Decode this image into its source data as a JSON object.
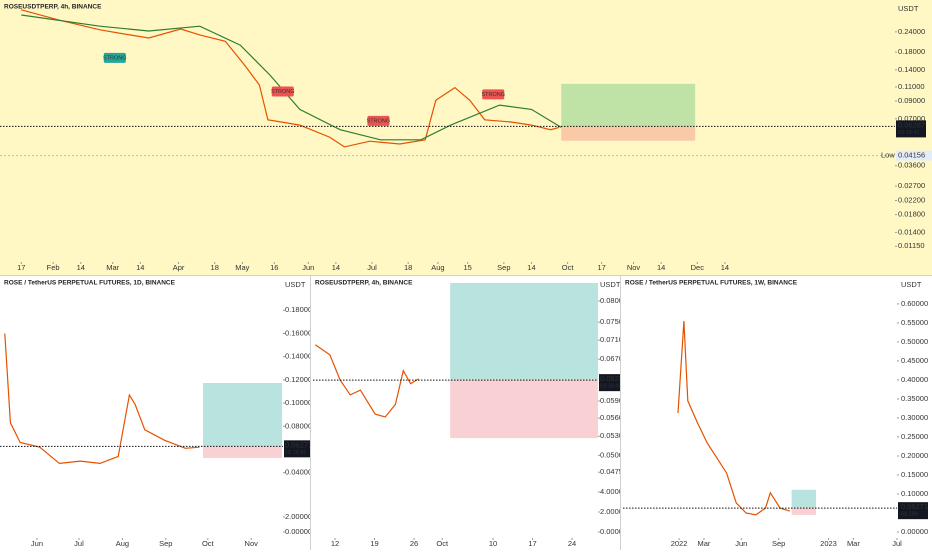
{
  "chart_data": [
    {
      "type": "line",
      "title": "ROSEUSDTPERP, 4h, BINANCE",
      "y_unit": "USDT",
      "log": true,
      "xlim": [
        6,
        427
      ],
      "ylim": [
        0.0092,
        0.377
      ],
      "xticks": [
        {
          "value": 16,
          "label": "17"
        },
        {
          "value": 31,
          "label": "Feb"
        },
        {
          "value": 44,
          "label": "14"
        },
        {
          "value": 59,
          "label": "Mar"
        },
        {
          "value": 72,
          "label": "14"
        },
        {
          "value": 90,
          "label": "Apr"
        },
        {
          "value": 107,
          "label": "18"
        },
        {
          "value": 120,
          "label": "May"
        },
        {
          "value": 135,
          "label": "16"
        },
        {
          "value": 151,
          "label": "Jun"
        },
        {
          "value": 164,
          "label": "14"
        },
        {
          "value": 181,
          "label": "Jul"
        },
        {
          "value": 198,
          "label": "18"
        },
        {
          "value": 212,
          "label": "Aug"
        },
        {
          "value": 226,
          "label": "15"
        },
        {
          "value": 243,
          "label": "Sep"
        },
        {
          "value": 256,
          "label": "14"
        },
        {
          "value": 273,
          "label": "Oct"
        },
        {
          "value": 289,
          "label": "17"
        },
        {
          "value": 304,
          "label": "Nov"
        },
        {
          "value": 317,
          "label": "14"
        },
        {
          "value": 334,
          "label": "Dec"
        },
        {
          "value": 347,
          "label": "14"
        }
      ],
      "yticks": [
        {
          "value": 0.24,
          "label": "0.24000"
        },
        {
          "value": 0.18,
          "label": "0.18000"
        },
        {
          "value": 0.14,
          "label": "0.14000"
        },
        {
          "value": 0.11,
          "label": "0.11000"
        },
        {
          "value": 0.09,
          "label": "0.09000"
        },
        {
          "value": 0.07,
          "label": "0.07000"
        },
        {
          "value": 0.036,
          "label": "0.03600"
        },
        {
          "value": 0.027,
          "label": "0.02700"
        },
        {
          "value": 0.022,
          "label": "0.02200"
        },
        {
          "value": 0.018,
          "label": "0.01800"
        },
        {
          "value": 0.014,
          "label": "0.01400"
        },
        {
          "value": 0.0115,
          "label": "0.01150"
        }
      ],
      "series": [
        {
          "color": "#e65100",
          "x": [
            16,
            34,
            53,
            67,
            76,
            91,
            100,
            112,
            121,
            128,
            132,
            138,
            147,
            161,
            168,
            180,
            194,
            206,
            211,
            220,
            227,
            234,
            246,
            256,
            265,
            269
          ],
          "values": [
            0.328,
            0.283,
            0.247,
            0.23,
            0.22,
            0.25,
            0.23,
            0.21,
            0.15,
            0.113,
            0.069,
            0.067,
            0.064,
            0.054,
            0.047,
            0.051,
            0.049,
            0.052,
            0.091,
            0.109,
            0.091,
            0.069,
            0.067,
            0.064,
            0.06,
            0.062
          ]
        },
        {
          "color": "#2e7d32",
          "x": [
            16,
            53,
            76,
            100,
            119,
            133,
            147,
            166,
            185,
            204,
            218,
            241,
            256,
            270
          ],
          "values": [
            0.305,
            0.26,
            0.243,
            0.26,
            0.199,
            0.13,
            0.08,
            0.06,
            0.052,
            0.052,
            0.064,
            0.085,
            0.08,
            0.062
          ]
        }
      ],
      "price": {
        "value": 0.06287,
        "countdown": "03:18:41"
      },
      "low": {
        "label": "Low",
        "value": 0.04156
      },
      "signals": [
        {
          "text": "STRONG",
          "x": 60,
          "value": 0.166,
          "color": "#26a69a"
        },
        {
          "text": "STRONG",
          "x": 139,
          "value": 0.103,
          "color": "#ef5350"
        },
        {
          "text": "STRONG",
          "x": 184,
          "value": 0.068,
          "color": "#ef5350"
        },
        {
          "text": "STRONG",
          "x": 238,
          "value": 0.099,
          "color": "#ef5350"
        }
      ],
      "position": {
        "x0": 270,
        "x1": 333,
        "target": 0.115,
        "entry": 0.0629,
        "stop": 0.0513,
        "target_color": "#bfe3a6",
        "stop_color": "#f9c9a8"
      },
      "background": "#fff8c5"
    },
    {
      "type": "line",
      "title": "ROSE / TetherUS PERPETUAL FUTURES, 1D, BINANCE",
      "y_unit": "USDT",
      "log": false,
      "xlim": [
        124.6,
        326.7
      ],
      "ylim": [
        0.038,
        0.2035
      ],
      "xticks": [
        {
          "value": 151,
          "label": "Jun"
        },
        {
          "value": 181,
          "label": "Jul"
        },
        {
          "value": 212,
          "label": "Aug"
        },
        {
          "value": 243,
          "label": "Sep"
        },
        {
          "value": 273,
          "label": "Oct"
        },
        {
          "value": 304,
          "label": "Nov"
        }
      ],
      "yticks": [
        {
          "value": 0.18,
          "label": "0.18000"
        },
        {
          "value": 0.16,
          "label": "0.16000"
        },
        {
          "value": 0.14,
          "label": "0.14000"
        },
        {
          "value": 0.12,
          "label": "0.12000"
        },
        {
          "value": 0.1,
          "label": "0.10000"
        },
        {
          "value": 0.08,
          "label": "0.08000"
        },
        {
          "value": 0.04,
          "label": "0.04000"
        }
      ],
      "volume_ylim": [
        0,
        4.9
      ],
      "volume_ticks": [
        {
          "value": 2,
          "label": "2.00000"
        },
        {
          "value": 0,
          "label": "0.00000"
        }
      ],
      "series": [
        {
          "color": "#e65100",
          "x": [
            128,
            132,
            139,
            153,
            167,
            182,
            196,
            209,
            217,
            221,
            228,
            242,
            257,
            267
          ],
          "values": [
            0.16,
            0.083,
            0.066,
            0.062,
            0.048,
            0.05,
            0.048,
            0.054,
            0.107,
            0.099,
            0.077,
            0.068,
            0.061,
            0.062
          ]
        }
      ],
      "price": {
        "value": 0.06271,
        "countdown": "15:18:41"
      },
      "position": {
        "x0": 269.6,
        "x1": 326,
        "target": 0.1173,
        "entry": 0.06271,
        "stop": 0.0527,
        "target_color": "#b9e3df",
        "stop_color": "#f9d0d3"
      },
      "background": "#ffffff"
    },
    {
      "type": "line",
      "title": "ROSEUSDTPERP, 4h, BINANCE",
      "y_unit": "USDT",
      "log": true,
      "xlim": [
        251.1,
        301.6
      ],
      "ylim": [
        0.045,
        0.0845
      ],
      "xticks": [
        {
          "value": 255,
          "label": "12"
        },
        {
          "value": 262,
          "label": "19"
        },
        {
          "value": 269,
          "label": "26"
        },
        {
          "value": 274,
          "label": "Oct"
        },
        {
          "value": 283,
          "label": "10"
        },
        {
          "value": 290,
          "label": "17"
        },
        {
          "value": 297,
          "label": "24"
        }
      ],
      "yticks": [
        {
          "value": 0.08,
          "label": "0.08000"
        },
        {
          "value": 0.075,
          "label": "0.07500"
        },
        {
          "value": 0.071,
          "label": "0.07100"
        },
        {
          "value": 0.067,
          "label": "0.06700"
        },
        {
          "value": 0.059,
          "label": "0.05900"
        },
        {
          "value": 0.056,
          "label": "0.05600"
        },
        {
          "value": 0.053,
          "label": "0.05300"
        },
        {
          "value": 0.05,
          "label": "0.05000"
        },
        {
          "value": 0.0475,
          "label": "0.04750"
        }
      ],
      "volume_ylim": [
        0,
        4.2
      ],
      "volume_ticks": [
        {
          "value": 4,
          "label": "4.00000"
        },
        {
          "value": 2,
          "label": "2.00000"
        },
        {
          "value": 0,
          "label": "0.00000"
        }
      ],
      "series": [
        {
          "color": "#e65100",
          "x": [
            251.5,
            254.1,
            255.9,
            257.7,
            259.5,
            262.1,
            263.9,
            265.7,
            267.1,
            268.4,
            269.8
          ],
          "values": [
            0.07,
            0.0679,
            0.0629,
            0.0601,
            0.061,
            0.0567,
            0.0562,
            0.0584,
            0.0647,
            0.0622,
            0.0631
          ]
        }
      ],
      "price": {
        "value": 0.06287,
        "countdown": "03:18:41"
      },
      "position": {
        "x0": 275.4,
        "x1": 301.6,
        "target": 0.0845,
        "entry": 0.06287,
        "stop": 0.0527,
        "target_color": "#b9e3df",
        "stop_color": "#f9d0d3"
      },
      "background": "#ffffff"
    },
    {
      "type": "line",
      "title": "ROSE / TetherUS PERPETUAL FUTURES, 1W, BINANCE",
      "y_unit": "USDT",
      "log": false,
      "xlim": [
        -4.5,
        17.5
      ],
      "ylim": [
        0,
        0.655
      ],
      "xticks": [
        {
          "value": 0,
          "label": "2022"
        },
        {
          "value": 2,
          "label": "Mar"
        },
        {
          "value": 5,
          "label": "Jun"
        },
        {
          "value": 8,
          "label": "Sep"
        },
        {
          "value": 12,
          "label": "2023"
        },
        {
          "value": 14,
          "label": "Mar"
        },
        {
          "value": 17.5,
          "label": "Jul"
        }
      ],
      "yticks": [
        {
          "value": 0.6,
          "label": "0.60000"
        },
        {
          "value": 0.55,
          "label": "0.55000"
        },
        {
          "value": 0.5,
          "label": "0.50000"
        },
        {
          "value": 0.45,
          "label": "0.45000"
        },
        {
          "value": 0.4,
          "label": "0.40000"
        },
        {
          "value": 0.35,
          "label": "0.35000"
        },
        {
          "value": 0.3,
          "label": "0.30000"
        },
        {
          "value": 0.25,
          "label": "0.25000"
        },
        {
          "value": 0.2,
          "label": "0.20000"
        },
        {
          "value": 0.15,
          "label": "0.15000"
        },
        {
          "value": 0.1,
          "label": "0.10000"
        },
        {
          "value": 0,
          "label": "0.00000"
        }
      ],
      "series": [
        {
          "color": "#e65100",
          "x": [
            -0.08,
            0.39,
            0.7,
            1.48,
            2.26,
            3.04,
            3.82,
            4.6,
            5.38,
            6.16,
            6.94,
            7.33,
            8.11,
            8.89
          ],
          "values": [
            0.313,
            0.555,
            0.345,
            0.287,
            0.234,
            0.195,
            0.155,
            0.076,
            0.05,
            0.045,
            0.063,
            0.103,
            0.063,
            0.055
          ]
        }
      ],
      "price": {
        "value": 0.06271,
        "countdown": "6d 16h"
      },
      "position": {
        "x0": 9.04,
        "x1": 11,
        "target": 0.111,
        "entry": 0.06271,
        "stop": 0.045,
        "target_color": "#b9e3df",
        "stop_color": "#f9d0d3"
      },
      "background": "#ffffff"
    }
  ]
}
